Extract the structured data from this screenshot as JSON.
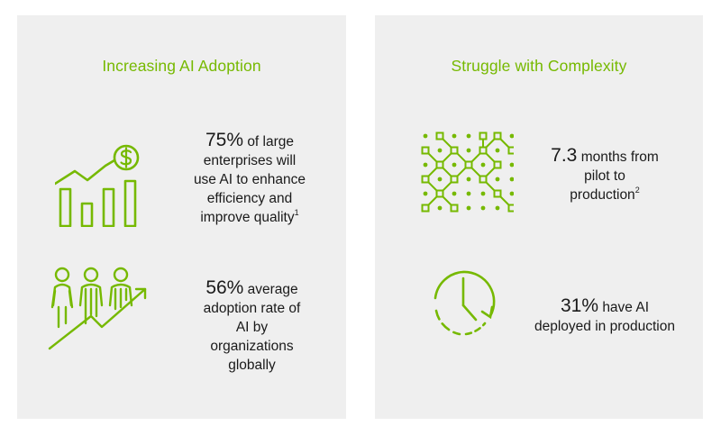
{
  "left_panel": {
    "title": "Increasing AI Adoption",
    "stats": [
      {
        "value": "75%",
        "lines": [
          "of large",
          "enterprises will",
          "use AI to enhance",
          "efficiency and",
          "improve quality"
        ],
        "footnote": "1",
        "icon": "growth-chart-dollar-icon"
      },
      {
        "value": "56%",
        "lines": [
          "average",
          "adoption rate of",
          "AI by",
          "organizations",
          "globally"
        ],
        "icon": "people-growth-arrow-icon"
      }
    ]
  },
  "right_panel": {
    "title": "Struggle with Complexity",
    "stats": [
      {
        "value": "7.3",
        "lines": [
          "months from",
          "pilot to",
          "production"
        ],
        "footnote": "2",
        "icon": "dot-grid-network-icon"
      },
      {
        "value": "31%",
        "lines": [
          "have AI",
          "deployed in production"
        ],
        "icon": "clock-icon"
      }
    ]
  },
  "accent_color": "#76b900",
  "panel_color": "#efefef"
}
